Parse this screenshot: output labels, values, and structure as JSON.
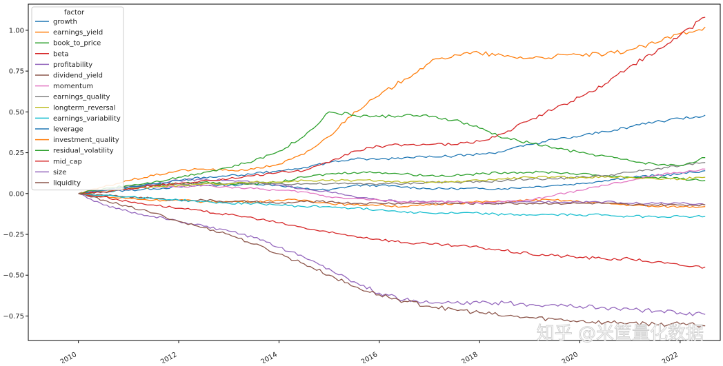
{
  "chart_data": {
    "type": "line",
    "title": "",
    "xlabel": "",
    "ylabel": "",
    "legend": {
      "title": "factor",
      "placement": "top-left"
    },
    "grid": false,
    "xlim": [
      2009.0,
      2022.8
    ],
    "ylim": [
      -0.9,
      1.16
    ],
    "x_ticks": [
      2010,
      2012,
      2014,
      2016,
      2018,
      2020,
      2022
    ],
    "x_tick_labels": [
      "2010",
      "2012",
      "2014",
      "2016",
      "2018",
      "2020",
      "2022"
    ],
    "y_ticks": [
      1.0,
      0.75,
      0.5,
      0.25,
      0.0,
      -0.25,
      -0.5,
      -0.75
    ],
    "y_tick_labels": [
      "1.00",
      "0.75",
      "0.50",
      "0.25",
      "0.00",
      "−0.25",
      "−0.50",
      "−0.75"
    ],
    "watermark": "知乎 @米筐量化数据",
    "x": [
      2010.0,
      2010.5,
      2011.0,
      2011.5,
      2012.0,
      2012.5,
      2013.0,
      2013.5,
      2014.0,
      2014.5,
      2015.0,
      2015.5,
      2016.0,
      2016.5,
      2017.0,
      2017.5,
      2018.0,
      2018.5,
      2019.0,
      2019.5,
      2020.0,
      2020.5,
      2021.0,
      2021.5,
      2022.0,
      2022.5
    ],
    "series": [
      {
        "name": "growth",
        "color": "#1f77b4",
        "values": [
          0,
          0.01,
          0.02,
          0.03,
          0.04,
          0.05,
          0.05,
          0.06,
          0.05,
          0.03,
          0.02,
          0.05,
          0.05,
          0.04,
          0.03,
          0.03,
          0.03,
          0.03,
          0.04,
          0.05,
          0.06,
          0.08,
          0.1,
          0.11,
          0.12,
          0.14
        ]
      },
      {
        "name": "earnings_yield",
        "color": "#ff7f0e",
        "values": [
          0,
          -0.02,
          -0.03,
          -0.04,
          -0.04,
          -0.05,
          -0.05,
          -0.05,
          -0.04,
          -0.04,
          -0.06,
          -0.07,
          -0.07,
          -0.08,
          -0.07,
          -0.06,
          -0.05,
          -0.05,
          -0.04,
          -0.04,
          -0.05,
          -0.06,
          -0.07,
          -0.08,
          -0.08,
          -0.08
        ]
      },
      {
        "name": "book_to_price",
        "color": "#2ca02c",
        "values": [
          0,
          0.02,
          0.04,
          0.05,
          0.06,
          0.07,
          0.06,
          0.06,
          0.07,
          0.1,
          0.12,
          0.13,
          0.13,
          0.12,
          0.11,
          0.11,
          0.12,
          0.13,
          0.13,
          0.13,
          0.12,
          0.11,
          0.1,
          0.1,
          0.09,
          0.08
        ]
      },
      {
        "name": "beta",
        "color": "#d62728",
        "values": [
          0,
          -0.02,
          -0.05,
          -0.07,
          -0.09,
          -0.11,
          -0.13,
          -0.15,
          -0.18,
          -0.21,
          -0.24,
          -0.26,
          -0.28,
          -0.3,
          -0.31,
          -0.32,
          -0.33,
          -0.35,
          -0.37,
          -0.38,
          -0.39,
          -0.4,
          -0.4,
          -0.42,
          -0.44,
          -0.45
        ]
      },
      {
        "name": "profitability",
        "color": "#9467bd",
        "values": [
          0,
          0.02,
          0.04,
          0.06,
          0.08,
          0.09,
          0.08,
          0.07,
          0.05,
          0.03,
          0.01,
          -0.02,
          -0.04,
          -0.05,
          -0.05,
          -0.05,
          -0.06,
          -0.06,
          -0.05,
          -0.05,
          -0.05,
          -0.05,
          -0.06,
          -0.06,
          -0.06,
          -0.07
        ]
      },
      {
        "name": "dividend_yield",
        "color": "#8c564b",
        "values": [
          0,
          -0.01,
          -0.02,
          -0.03,
          -0.04,
          -0.04,
          -0.05,
          -0.05,
          -0.06,
          -0.05,
          -0.05,
          -0.06,
          -0.06,
          -0.06,
          -0.06,
          -0.06,
          -0.06,
          -0.06,
          -0.06,
          -0.06,
          -0.06,
          -0.06,
          -0.07,
          -0.07,
          -0.07,
          -0.07
        ]
      },
      {
        "name": "momentum",
        "color": "#e377c2",
        "values": [
          0,
          0.02,
          0.03,
          0.04,
          0.04,
          0.05,
          0.04,
          0.03,
          0.02,
          0.01,
          -0.02,
          -0.03,
          -0.04,
          -0.05,
          -0.05,
          -0.05,
          -0.06,
          -0.05,
          -0.04,
          -0.01,
          0.02,
          0.05,
          0.08,
          0.11,
          0.13,
          0.15
        ]
      },
      {
        "name": "earnings_quality",
        "color": "#7f7f7f",
        "values": [
          0,
          0.02,
          0.04,
          0.05,
          0.06,
          0.06,
          0.06,
          0.06,
          0.06,
          0.06,
          0.06,
          0.06,
          0.06,
          0.06,
          0.07,
          0.07,
          0.07,
          0.08,
          0.09,
          0.09,
          0.1,
          0.11,
          0.13,
          0.15,
          0.17,
          0.19
        ]
      },
      {
        "name": "longterm_reversal",
        "color": "#bcbd22",
        "values": [
          0,
          0.01,
          0.03,
          0.04,
          0.05,
          0.06,
          0.06,
          0.07,
          0.07,
          0.08,
          0.08,
          0.08,
          0.08,
          0.07,
          0.07,
          0.07,
          0.08,
          0.09,
          0.1,
          0.1,
          0.1,
          0.1,
          0.1,
          0.09,
          0.09,
          0.1
        ]
      },
      {
        "name": "earnings_variability",
        "color": "#17becf",
        "values": [
          0,
          -0.01,
          -0.02,
          -0.03,
          -0.04,
          -0.05,
          -0.06,
          -0.06,
          -0.07,
          -0.08,
          -0.08,
          -0.09,
          -0.1,
          -0.11,
          -0.12,
          -0.12,
          -0.12,
          -0.13,
          -0.13,
          -0.13,
          -0.13,
          -0.13,
          -0.14,
          -0.14,
          -0.14,
          -0.14
        ]
      },
      {
        "name": "leverage",
        "color": "#1f77b4",
        "values": [
          0,
          0.02,
          0.04,
          0.06,
          0.08,
          0.1,
          0.11,
          0.12,
          0.14,
          0.16,
          0.19,
          0.21,
          0.21,
          0.22,
          0.23,
          0.23,
          0.24,
          0.26,
          0.3,
          0.33,
          0.35,
          0.38,
          0.41,
          0.44,
          0.46,
          0.48
        ]
      },
      {
        "name": "investment_quality",
        "color": "#ff7f0e",
        "values": [
          0,
          0.04,
          0.08,
          0.11,
          0.14,
          0.15,
          0.14,
          0.15,
          0.18,
          0.24,
          0.35,
          0.5,
          0.6,
          0.7,
          0.8,
          0.85,
          0.86,
          0.84,
          0.83,
          0.84,
          0.85,
          0.85,
          0.88,
          0.92,
          0.98,
          1.02
        ]
      },
      {
        "name": "residual_volatility",
        "color": "#2ca02c",
        "values": [
          0,
          0.03,
          0.05,
          0.07,
          0.1,
          0.13,
          0.16,
          0.2,
          0.26,
          0.35,
          0.5,
          0.48,
          0.47,
          0.48,
          0.47,
          0.45,
          0.4,
          0.34,
          0.31,
          0.28,
          0.25,
          0.23,
          0.2,
          0.18,
          0.17,
          0.22
        ]
      },
      {
        "name": "mid_cap",
        "color": "#d62728",
        "values": [
          0,
          0.01,
          0.03,
          0.05,
          0.06,
          0.08,
          0.09,
          0.11,
          0.13,
          0.14,
          0.19,
          0.26,
          0.29,
          0.3,
          0.3,
          0.3,
          0.32,
          0.37,
          0.45,
          0.52,
          0.59,
          0.67,
          0.78,
          0.86,
          0.97,
          1.08
        ]
      },
      {
        "name": "size",
        "color": "#9467bd",
        "values": [
          0,
          -0.07,
          -0.11,
          -0.14,
          -0.17,
          -0.2,
          -0.23,
          -0.27,
          -0.33,
          -0.39,
          -0.46,
          -0.54,
          -0.61,
          -0.65,
          -0.67,
          -0.67,
          -0.67,
          -0.67,
          -0.68,
          -0.68,
          -0.69,
          -0.7,
          -0.71,
          -0.72,
          -0.73,
          -0.74
        ]
      },
      {
        "name": "liquidity",
        "color": "#8c564b",
        "values": [
          0,
          -0.04,
          -0.08,
          -0.12,
          -0.17,
          -0.21,
          -0.25,
          -0.31,
          -0.37,
          -0.43,
          -0.5,
          -0.57,
          -0.62,
          -0.66,
          -0.69,
          -0.71,
          -0.73,
          -0.75,
          -0.76,
          -0.77,
          -0.78,
          -0.79,
          -0.79,
          -0.8,
          -0.8,
          -0.81
        ]
      }
    ]
  }
}
